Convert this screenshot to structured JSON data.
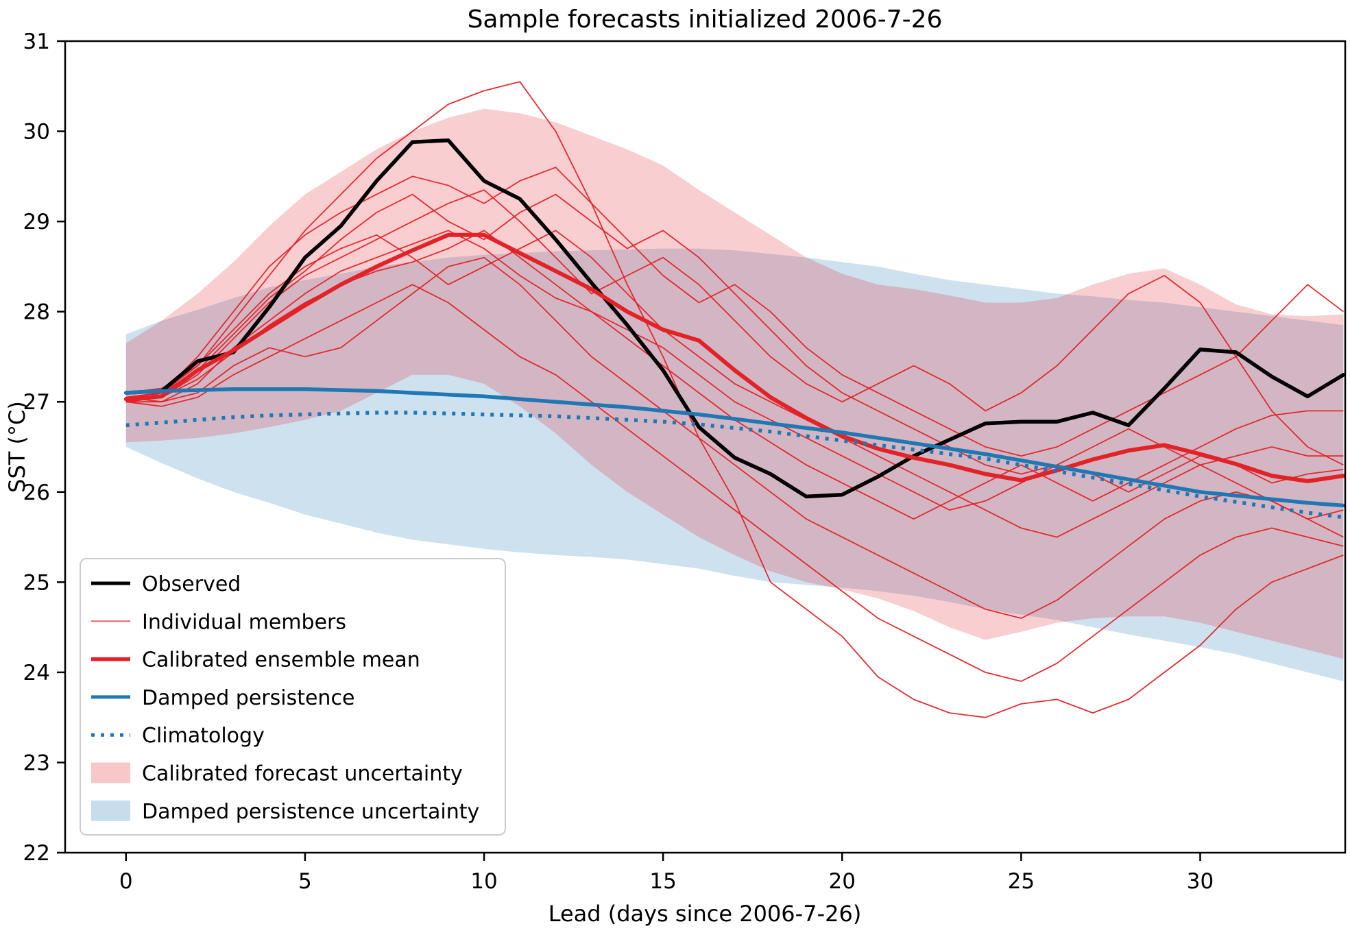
{
  "title": "Sample forecasts initialized 2006-7-26",
  "axes": {
    "xlabel": "Lead (days since 2006-7-26)",
    "ylabel": "SST (°C)",
    "x_ticks": [
      0,
      5,
      10,
      15,
      20,
      25,
      30
    ],
    "y_ticks": [
      22,
      23,
      24,
      25,
      26,
      27,
      28,
      29,
      30,
      31
    ],
    "xlim": [
      -1.7,
      34.05
    ],
    "ylim": [
      22,
      31
    ]
  },
  "style": {
    "observed_color": "#000000",
    "red_color": "#e32227",
    "blue_color": "#1f77b4",
    "band_alpha": 0.22,
    "legend_edge_color": "#cccccc",
    "axis_color": "#000000"
  },
  "legend": {
    "entries": [
      {
        "label": "Observed",
        "type": "line",
        "color": "#000000",
        "width": 5,
        "opacity": 1
      },
      {
        "label": "Individual members",
        "type": "line",
        "color": "#e32227",
        "width": 2,
        "opacity": 0.7
      },
      {
        "label": "Calibrated ensemble mean",
        "type": "line",
        "color": "#e32227",
        "width": 5.5,
        "opacity": 1
      },
      {
        "label": "Damped persistence",
        "type": "line",
        "color": "#1f77b4",
        "width": 5,
        "opacity": 1
      },
      {
        "label": "Climatology",
        "type": "dotted",
        "color": "#1f77b4",
        "width": 5,
        "opacity": 1
      },
      {
        "label": "Calibrated forecast uncertainty",
        "type": "patch",
        "color": "#e32227",
        "opacity": 0.25
      },
      {
        "label": "Damped persistence uncertainty",
        "type": "patch",
        "color": "#1f77b4",
        "opacity": 0.25
      }
    ]
  },
  "chart_data": {
    "type": "line",
    "title": "Sample forecasts initialized 2006-7-26",
    "xlabel": "Lead (days since 2006-7-26)",
    "ylabel": "SST (°C)",
    "xlim": [
      -1.7,
      34.05
    ],
    "ylim": [
      22,
      31
    ],
    "grid": false,
    "legend_position": "lower left",
    "x": [
      0,
      1,
      2,
      3,
      4,
      5,
      6,
      7,
      8,
      9,
      10,
      11,
      12,
      13,
      14,
      15,
      16,
      17,
      18,
      19,
      20,
      21,
      22,
      23,
      24,
      25,
      26,
      27,
      28,
      29,
      30,
      31,
      32,
      33,
      34
    ],
    "series": [
      {
        "name": "Observed",
        "values": [
          27.1,
          27.12,
          27.45,
          27.55,
          28.05,
          28.6,
          28.95,
          29.45,
          29.88,
          29.9,
          29.45,
          29.25,
          28.8,
          28.32,
          27.85,
          27.35,
          26.72,
          26.38,
          26.2,
          25.95,
          25.97,
          26.17,
          26.4,
          26.58,
          26.76,
          26.78,
          26.78,
          26.88,
          26.74,
          27.15,
          27.58,
          27.55,
          27.28,
          27.06,
          27.3
        ]
      },
      {
        "name": "Calibrated ensemble mean",
        "values": [
          27.03,
          27.06,
          27.35,
          27.57,
          27.82,
          28.07,
          28.3,
          28.5,
          28.68,
          28.85,
          28.85,
          28.65,
          28.45,
          28.25,
          28.0,
          27.8,
          27.68,
          27.35,
          27.05,
          26.82,
          26.62,
          26.48,
          26.38,
          26.3,
          26.2,
          26.13,
          26.24,
          26.36,
          26.46,
          26.52,
          26.42,
          26.31,
          26.18,
          26.12,
          26.18
        ]
      },
      {
        "name": "Damped persistence",
        "values": [
          27.1,
          27.12,
          27.13,
          27.14,
          27.14,
          27.14,
          27.13,
          27.12,
          27.1,
          27.08,
          27.06,
          27.03,
          27.0,
          26.97,
          26.94,
          26.9,
          26.86,
          26.81,
          26.76,
          26.71,
          26.66,
          26.6,
          26.54,
          26.48,
          26.42,
          26.35,
          26.28,
          26.21,
          26.14,
          26.07,
          26.0,
          25.96,
          25.92,
          25.88,
          25.85
        ]
      },
      {
        "name": "Climatology",
        "values": [
          26.74,
          26.77,
          26.8,
          26.83,
          26.85,
          26.86,
          26.87,
          26.88,
          26.88,
          26.87,
          26.86,
          26.85,
          26.84,
          26.82,
          26.8,
          26.78,
          26.75,
          26.71,
          26.67,
          26.62,
          26.57,
          26.52,
          26.47,
          26.42,
          26.37,
          26.3,
          26.23,
          26.16,
          26.09,
          26.02,
          25.95,
          25.89,
          25.83,
          25.77,
          25.72
        ]
      }
    ],
    "members": [
      [
        27.0,
        27.1,
        27.4,
        27.9,
        28.4,
        28.9,
        29.3,
        29.7,
        30.0,
        30.3,
        30.45,
        30.55,
        30.0,
        29.2,
        28.3,
        27.5,
        26.6,
        25.9,
        25.0,
        24.7,
        24.4,
        23.95,
        23.7,
        23.55,
        23.5,
        23.65,
        23.7,
        23.55,
        23.7,
        24.0,
        24.3,
        24.7,
        25.0,
        25.15,
        25.3
      ],
      [
        27.05,
        27.1,
        27.5,
        28.0,
        28.5,
        28.85,
        29.1,
        29.3,
        29.5,
        29.4,
        29.2,
        29.45,
        29.6,
        29.2,
        28.8,
        28.4,
        28.1,
        28.3,
        28.0,
        27.6,
        27.3,
        27.1,
        26.9,
        26.7,
        26.5,
        26.4,
        26.5,
        26.7,
        26.9,
        27.1,
        27.3,
        27.5,
        27.9,
        28.3,
        28.0
      ],
      [
        27.0,
        27.05,
        27.3,
        27.7,
        28.1,
        28.4,
        28.6,
        28.8,
        29.0,
        29.2,
        29.35,
        29.0,
        28.6,
        28.2,
        28.4,
        28.6,
        28.3,
        27.9,
        27.5,
        27.2,
        27.0,
        27.2,
        27.4,
        27.2,
        26.9,
        27.1,
        27.4,
        27.8,
        28.2,
        28.4,
        28.1,
        27.5,
        26.9,
        26.5,
        26.3
      ],
      [
        27.0,
        27.0,
        27.2,
        27.6,
        27.9,
        28.2,
        28.45,
        28.6,
        28.75,
        28.9,
        28.7,
        28.4,
        28.15,
        28.0,
        27.7,
        27.4,
        27.1,
        26.8,
        26.55,
        26.3,
        26.1,
        25.9,
        25.7,
        25.9,
        26.1,
        26.3,
        26.1,
        25.9,
        26.1,
        26.3,
        26.5,
        26.7,
        26.85,
        26.9,
        26.9
      ],
      [
        27.05,
        27.0,
        27.1,
        27.4,
        27.6,
        27.5,
        27.6,
        27.9,
        28.2,
        28.5,
        28.6,
        28.3,
        27.9,
        27.5,
        27.2,
        26.9,
        26.6,
        26.3,
        26.0,
        25.7,
        25.5,
        25.3,
        25.1,
        24.9,
        24.7,
        24.6,
        24.8,
        25.1,
        25.4,
        25.7,
        25.9,
        26.0,
        25.9,
        25.7,
        25.5
      ],
      [
        27.1,
        27.15,
        27.4,
        27.8,
        28.2,
        28.5,
        28.7,
        28.85,
        28.6,
        28.3,
        28.5,
        28.7,
        28.9,
        28.6,
        28.2,
        27.8,
        27.5,
        27.2,
        27.0,
        26.8,
        26.6,
        26.4,
        26.2,
        26.0,
        25.8,
        25.6,
        25.5,
        25.7,
        25.9,
        26.1,
        26.3,
        26.1,
        25.9,
        25.7,
        25.8
      ],
      [
        27.0,
        26.95,
        27.05,
        27.3,
        27.5,
        27.7,
        27.9,
        28.1,
        28.3,
        28.1,
        27.8,
        27.5,
        27.3,
        27.0,
        26.7,
        26.4,
        26.1,
        25.8,
        25.5,
        25.2,
        24.9,
        24.6,
        24.4,
        24.2,
        24.0,
        23.9,
        24.1,
        24.4,
        24.7,
        25.0,
        25.3,
        25.5,
        25.6,
        25.5,
        25.4
      ],
      [
        27.05,
        27.1,
        27.35,
        27.75,
        28.15,
        28.45,
        28.8,
        29.1,
        29.3,
        29.0,
        28.8,
        29.1,
        29.3,
        29.0,
        28.7,
        28.9,
        28.6,
        28.2,
        27.8,
        27.4,
        27.1,
        26.9,
        26.7,
        26.5,
        26.3,
        26.2,
        26.3,
        26.5,
        26.7,
        26.5,
        26.3,
        26.4,
        26.5,
        26.4,
        26.4
      ],
      [
        27.0,
        27.05,
        27.25,
        27.55,
        27.85,
        28.1,
        28.3,
        28.45,
        28.55,
        28.7,
        28.9,
        28.6,
        28.3,
        28.0,
        27.8,
        27.6,
        27.3,
        27.0,
        26.8,
        26.6,
        26.4,
        26.2,
        26.0,
        25.8,
        25.9,
        26.1,
        26.3,
        26.2,
        26.0,
        26.2,
        26.4,
        26.3,
        26.1,
        26.2,
        26.25
      ]
    ],
    "bands": {
      "damped_persistence_uncertainty": {
        "top": [
          27.75,
          27.9,
          28.02,
          28.15,
          28.27,
          28.35,
          28.42,
          28.5,
          28.55,
          28.6,
          28.63,
          28.65,
          28.67,
          28.68,
          28.69,
          28.7,
          28.7,
          28.68,
          28.64,
          28.6,
          28.55,
          28.5,
          28.42,
          28.35,
          28.3,
          28.25,
          28.2,
          28.17,
          28.13,
          28.1,
          28.05,
          28.0,
          27.95,
          27.9,
          27.85
        ],
        "bottom": [
          26.5,
          26.32,
          26.15,
          26.0,
          25.88,
          25.75,
          25.65,
          25.55,
          25.47,
          25.42,
          25.37,
          25.33,
          25.3,
          25.28,
          25.25,
          25.2,
          25.15,
          25.07,
          25.0,
          24.97,
          24.94,
          24.9,
          24.85,
          24.78,
          24.7,
          24.64,
          24.58,
          24.5,
          24.42,
          24.35,
          24.28,
          24.2,
          24.1,
          24.0,
          23.9
        ]
      },
      "calibrated_forecast_uncertainty": {
        "top": [
          27.65,
          27.9,
          28.2,
          28.55,
          28.95,
          29.3,
          29.55,
          29.8,
          30.0,
          30.15,
          30.25,
          30.2,
          30.1,
          29.95,
          29.8,
          29.62,
          29.35,
          29.1,
          28.85,
          28.6,
          28.42,
          28.3,
          28.25,
          28.18,
          28.1,
          28.1,
          28.15,
          28.3,
          28.42,
          28.48,
          28.3,
          28.08,
          27.97,
          27.95,
          27.97
        ],
        "bottom": [
          26.55,
          26.57,
          26.6,
          26.65,
          26.72,
          26.8,
          26.9,
          27.1,
          27.3,
          27.3,
          27.2,
          26.95,
          26.65,
          26.3,
          26.0,
          25.75,
          25.5,
          25.3,
          25.12,
          25.0,
          24.92,
          24.82,
          24.68,
          24.5,
          24.36,
          24.45,
          24.55,
          24.6,
          24.62,
          24.62,
          24.55,
          24.45,
          24.35,
          24.25,
          24.15
        ]
      }
    }
  }
}
